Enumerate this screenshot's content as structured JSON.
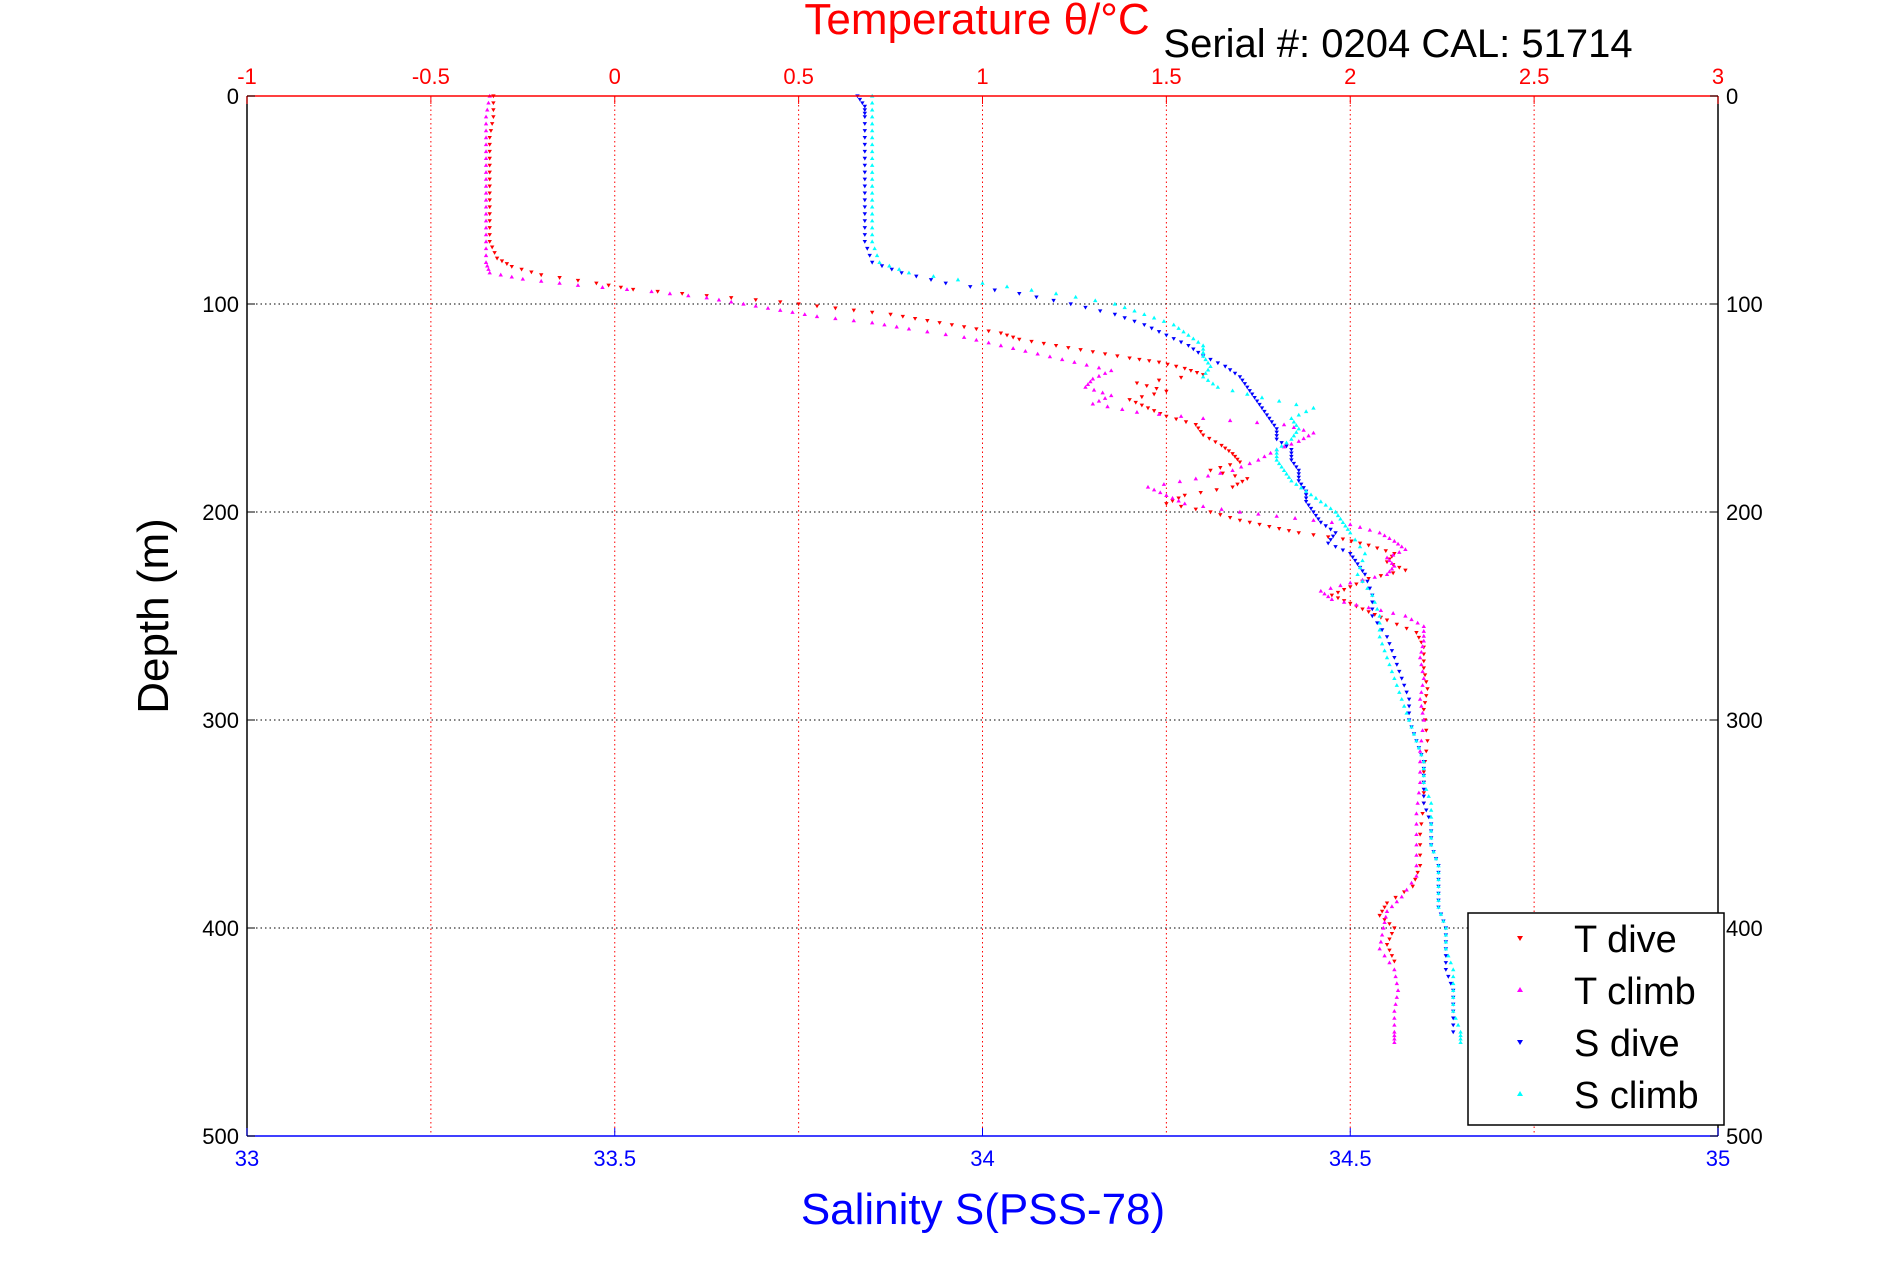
{
  "chart_data": {
    "type": "scatter",
    "title_top": "Temperature θ/°C",
    "serial": "Serial #: 0204   CAL: 51714",
    "xlabel_bottom": "Salinity S(PSS-78)",
    "ylabel": "Depth (m)",
    "x_top_axis": {
      "range": [
        -1,
        3
      ],
      "ticks": [
        -1,
        -0.5,
        0,
        0.5,
        1,
        1.5,
        2,
        2.5,
        3
      ],
      "tick_labels": [
        "-1",
        "-0.5",
        "0",
        "0.5",
        "1",
        "1.5",
        "2",
        "2.5",
        "3"
      ],
      "color": "#ff0000"
    },
    "x_bottom_axis": {
      "range": [
        33,
        35
      ],
      "ticks": [
        33,
        33.5,
        34,
        34.5,
        35
      ],
      "tick_labels": [
        "33",
        "33.5",
        "34",
        "34.5",
        "35"
      ],
      "color": "#0000ff"
    },
    "y_axis": {
      "range": [
        0,
        500
      ],
      "ticks": [
        0,
        100,
        200,
        300,
        400,
        500
      ],
      "tick_labels": [
        "0",
        "100",
        "200",
        "300",
        "400",
        "500"
      ],
      "reversed": true
    },
    "grid": true,
    "legend_position": "bottom-right",
    "series": [
      {
        "name": "T dive",
        "axis": "top",
        "color": "#ff0000",
        "marker": "triangle-down",
        "points": [
          [
            -0.33,
            0
          ],
          [
            -0.33,
            10
          ],
          [
            -0.34,
            20
          ],
          [
            -0.34,
            30
          ],
          [
            -0.34,
            40
          ],
          [
            -0.34,
            50
          ],
          [
            -0.34,
            60
          ],
          [
            -0.34,
            70
          ],
          [
            -0.32,
            78
          ],
          [
            -0.28,
            82
          ],
          [
            -0.2,
            86
          ],
          [
            -0.05,
            90
          ],
          [
            0.05,
            93
          ],
          [
            0.25,
            96
          ],
          [
            0.45,
            99
          ],
          [
            0.6,
            102
          ],
          [
            0.75,
            105
          ],
          [
            0.85,
            108
          ],
          [
            0.95,
            111
          ],
          [
            1.05,
            114
          ],
          [
            1.1,
            117
          ],
          [
            1.2,
            120
          ],
          [
            1.3,
            123
          ],
          [
            1.4,
            126
          ],
          [
            1.48,
            128
          ],
          [
            1.55,
            131
          ],
          [
            1.6,
            134
          ],
          [
            1.42,
            138
          ],
          [
            1.5,
            142
          ],
          [
            1.4,
            146
          ],
          [
            1.45,
            150
          ],
          [
            1.5,
            154
          ],
          [
            1.58,
            158
          ],
          [
            1.6,
            163
          ],
          [
            1.65,
            168
          ],
          [
            1.68,
            172
          ],
          [
            1.7,
            176
          ],
          [
            1.62,
            180
          ],
          [
            1.72,
            184
          ],
          [
            1.68,
            188
          ],
          [
            1.55,
            192
          ],
          [
            1.5,
            196
          ],
          [
            1.62,
            200
          ],
          [
            1.7,
            204
          ],
          [
            1.78,
            207
          ],
          [
            1.86,
            210
          ],
          [
            1.98,
            213
          ],
          [
            2.05,
            216
          ],
          [
            2.12,
            220
          ],
          [
            2.1,
            224
          ],
          [
            2.15,
            228
          ],
          [
            2.05,
            232
          ],
          [
            2.0,
            236
          ],
          [
            1.95,
            240
          ],
          [
            2.0,
            244
          ],
          [
            2.05,
            248
          ],
          [
            2.1,
            252
          ],
          [
            2.18,
            258
          ],
          [
            2.2,
            265
          ],
          [
            2.2,
            275
          ],
          [
            2.21,
            285
          ],
          [
            2.2,
            295
          ],
          [
            2.21,
            310
          ],
          [
            2.2,
            325
          ],
          [
            2.2,
            340
          ],
          [
            2.19,
            355
          ],
          [
            2.19,
            370
          ],
          [
            2.17,
            380
          ],
          [
            2.1,
            388
          ],
          [
            2.08,
            394
          ],
          [
            2.12,
            400
          ],
          [
            2.1,
            408
          ],
          [
            2.12,
            416
          ]
        ]
      },
      {
        "name": "T climb",
        "axis": "top",
        "color": "#ff00ff",
        "marker": "triangle-up",
        "points": [
          [
            -0.34,
            0
          ],
          [
            -0.35,
            10
          ],
          [
            -0.35,
            20
          ],
          [
            -0.35,
            30
          ],
          [
            -0.35,
            40
          ],
          [
            -0.35,
            50
          ],
          [
            -0.35,
            60
          ],
          [
            -0.35,
            70
          ],
          [
            -0.35,
            80
          ],
          [
            -0.34,
            85
          ],
          [
            -0.25,
            88
          ],
          [
            -0.1,
            91
          ],
          [
            0.1,
            94
          ],
          [
            0.25,
            97
          ],
          [
            0.35,
            100
          ],
          [
            0.45,
            103
          ],
          [
            0.55,
            106
          ],
          [
            0.7,
            109
          ],
          [
            0.8,
            112
          ],
          [
            0.95,
            116
          ],
          [
            1.05,
            120
          ],
          [
            1.15,
            124
          ],
          [
            1.25,
            128
          ],
          [
            1.35,
            132
          ],
          [
            1.3,
            136
          ],
          [
            1.28,
            140
          ],
          [
            1.35,
            144
          ],
          [
            1.3,
            148
          ],
          [
            1.42,
            152
          ],
          [
            1.6,
            155
          ],
          [
            1.82,
            158
          ],
          [
            1.9,
            162
          ],
          [
            1.86,
            166
          ],
          [
            1.8,
            170
          ],
          [
            1.75,
            175
          ],
          [
            1.68,
            180
          ],
          [
            1.58,
            184
          ],
          [
            1.45,
            188
          ],
          [
            1.5,
            192
          ],
          [
            1.55,
            196
          ],
          [
            1.7,
            200
          ],
          [
            1.85,
            203
          ],
          [
            2.0,
            206
          ],
          [
            2.08,
            210
          ],
          [
            2.12,
            214
          ],
          [
            2.15,
            218
          ],
          [
            2.1,
            222
          ],
          [
            2.12,
            226
          ],
          [
            2.1,
            230
          ],
          [
            2.0,
            234
          ],
          [
            1.92,
            238
          ],
          [
            1.95,
            242
          ],
          [
            2.05,
            246
          ],
          [
            2.15,
            250
          ],
          [
            2.2,
            255
          ],
          [
            2.2,
            262
          ],
          [
            2.19,
            270
          ],
          [
            2.2,
            280
          ],
          [
            2.19,
            290
          ],
          [
            2.2,
            300
          ],
          [
            2.19,
            315
          ],
          [
            2.19,
            330
          ],
          [
            2.18,
            345
          ],
          [
            2.18,
            360
          ],
          [
            2.18,
            375
          ],
          [
            2.14,
            385
          ],
          [
            2.1,
            392
          ],
          [
            2.09,
            400
          ],
          [
            2.08,
            410
          ],
          [
            2.12,
            420
          ],
          [
            2.13,
            430
          ],
          [
            2.12,
            440
          ],
          [
            2.12,
            450
          ],
          [
            2.12,
            455
          ]
        ]
      },
      {
        "name": "S dive",
        "axis": "bottom",
        "color": "#0000ff",
        "marker": "triangle-down",
        "points": [
          [
            33.83,
            0
          ],
          [
            33.84,
            5
          ],
          [
            33.84,
            10
          ],
          [
            33.84,
            20
          ],
          [
            33.84,
            30
          ],
          [
            33.84,
            40
          ],
          [
            33.84,
            50
          ],
          [
            33.84,
            60
          ],
          [
            33.84,
            70
          ],
          [
            33.85,
            80
          ],
          [
            33.89,
            85
          ],
          [
            33.95,
            90
          ],
          [
            34.05,
            95
          ],
          [
            34.12,
            100
          ],
          [
            34.18,
            105
          ],
          [
            34.22,
            110
          ],
          [
            34.25,
            115
          ],
          [
            34.28,
            120
          ],
          [
            34.3,
            125
          ],
          [
            34.33,
            130
          ],
          [
            34.35,
            135
          ],
          [
            34.36,
            140
          ],
          [
            34.37,
            145
          ],
          [
            34.38,
            150
          ],
          [
            34.39,
            155
          ],
          [
            34.4,
            160
          ],
          [
            34.4,
            165
          ],
          [
            34.42,
            170
          ],
          [
            34.42,
            175
          ],
          [
            34.43,
            180
          ],
          [
            34.43,
            185
          ],
          [
            34.44,
            190
          ],
          [
            34.44,
            195
          ],
          [
            34.45,
            200
          ],
          [
            34.46,
            205
          ],
          [
            34.48,
            210
          ],
          [
            34.47,
            215
          ],
          [
            34.5,
            220
          ],
          [
            34.51,
            225
          ],
          [
            34.52,
            230
          ],
          [
            34.53,
            240
          ],
          [
            34.53,
            250
          ],
          [
            34.55,
            260
          ],
          [
            34.56,
            270
          ],
          [
            34.57,
            280
          ],
          [
            34.58,
            290
          ],
          [
            34.58,
            300
          ],
          [
            34.59,
            310
          ],
          [
            34.6,
            320
          ],
          [
            34.6,
            330
          ],
          [
            34.6,
            340
          ],
          [
            34.61,
            350
          ],
          [
            34.61,
            360
          ],
          [
            34.62,
            370
          ],
          [
            34.62,
            380
          ],
          [
            34.62,
            390
          ],
          [
            34.63,
            400
          ],
          [
            34.63,
            410
          ],
          [
            34.63,
            420
          ],
          [
            34.64,
            430
          ],
          [
            34.64,
            440
          ],
          [
            34.64,
            450
          ]
        ]
      },
      {
        "name": "S climb",
        "axis": "bottom",
        "color": "#00ffff",
        "marker": "triangle-up",
        "points": [
          [
            33.85,
            0
          ],
          [
            33.85,
            10
          ],
          [
            33.85,
            20
          ],
          [
            33.85,
            30
          ],
          [
            33.85,
            40
          ],
          [
            33.85,
            50
          ],
          [
            33.85,
            60
          ],
          [
            33.85,
            70
          ],
          [
            33.86,
            80
          ],
          [
            33.9,
            85
          ],
          [
            34.0,
            90
          ],
          [
            34.1,
            95
          ],
          [
            34.18,
            100
          ],
          [
            34.22,
            105
          ],
          [
            34.26,
            110
          ],
          [
            34.28,
            115
          ],
          [
            34.3,
            120
          ],
          [
            34.3,
            125
          ],
          [
            34.31,
            130
          ],
          [
            34.3,
            135
          ],
          [
            34.32,
            140
          ],
          [
            34.38,
            145
          ],
          [
            34.45,
            150
          ],
          [
            34.42,
            155
          ],
          [
            34.43,
            160
          ],
          [
            34.42,
            165
          ],
          [
            34.4,
            170
          ],
          [
            34.4,
            175
          ],
          [
            34.41,
            180
          ],
          [
            34.42,
            185
          ],
          [
            34.44,
            190
          ],
          [
            34.46,
            195
          ],
          [
            34.48,
            200
          ],
          [
            34.49,
            205
          ],
          [
            34.5,
            210
          ],
          [
            34.52,
            220
          ],
          [
            34.51,
            230
          ],
          [
            34.53,
            240
          ],
          [
            34.54,
            250
          ],
          [
            34.54,
            260
          ],
          [
            34.55,
            270
          ],
          [
            34.56,
            280
          ],
          [
            34.57,
            290
          ],
          [
            34.58,
            300
          ],
          [
            34.59,
            310
          ],
          [
            34.6,
            320
          ],
          [
            34.6,
            330
          ],
          [
            34.61,
            340
          ],
          [
            34.61,
            350
          ],
          [
            34.61,
            360
          ],
          [
            34.62,
            370
          ],
          [
            34.62,
            380
          ],
          [
            34.62,
            390
          ],
          [
            34.63,
            400
          ],
          [
            34.63,
            410
          ],
          [
            34.64,
            420
          ],
          [
            34.64,
            430
          ],
          [
            34.64,
            440
          ],
          [
            34.65,
            450
          ],
          [
            34.65,
            455
          ]
        ]
      }
    ]
  }
}
